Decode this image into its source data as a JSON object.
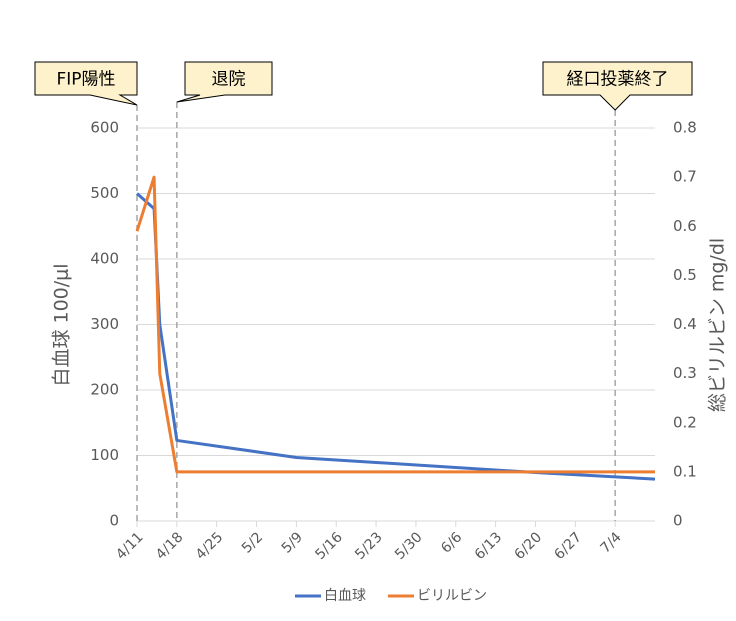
{
  "chart_data": {
    "type": "line",
    "x_axis_format": "M/D",
    "xlim": [
      "4/11",
      "7/11"
    ],
    "xticks": [
      "4/11",
      "4/18",
      "4/25",
      "5/2",
      "5/9",
      "5/16",
      "5/23",
      "5/30",
      "6/6",
      "6/13",
      "6/20",
      "6/27",
      "7/4"
    ],
    "ylabel": "白血球 100/μl",
    "y2label": "総ビリルビン mg/dl",
    "ylim": [
      0,
      600
    ],
    "yticks": [
      0,
      100,
      200,
      300,
      400,
      500,
      600
    ],
    "y2lim": [
      0,
      0.8
    ],
    "y2ticks": [
      0,
      0.1,
      0.2,
      0.3,
      0.4,
      0.5,
      0.6,
      0.7,
      0.8
    ],
    "grid": true,
    "legend": "bottom",
    "series": [
      {
        "name": "白血球",
        "color": "#4472c4",
        "axis": "y",
        "x": [
          "4/11",
          "4/14",
          "4/15",
          "4/18",
          "5/9",
          "6/20",
          "7/11"
        ],
        "values": [
          500,
          477,
          300,
          123,
          97,
          74,
          64
        ]
      },
      {
        "name": "ビリルビン",
        "color": "#ed7d31",
        "axis": "y2",
        "x": [
          "4/11",
          "4/14",
          "4/15",
          "4/18",
          "7/11"
        ],
        "values": [
          0.59,
          0.7,
          0.3,
          0.1,
          0.1
        ]
      }
    ],
    "annotations": [
      {
        "x": "4/11",
        "text": "FIP陽性"
      },
      {
        "x": "4/18",
        "text": "退院"
      },
      {
        "x": "7/4",
        "text": "経口投薬終了"
      }
    ]
  }
}
